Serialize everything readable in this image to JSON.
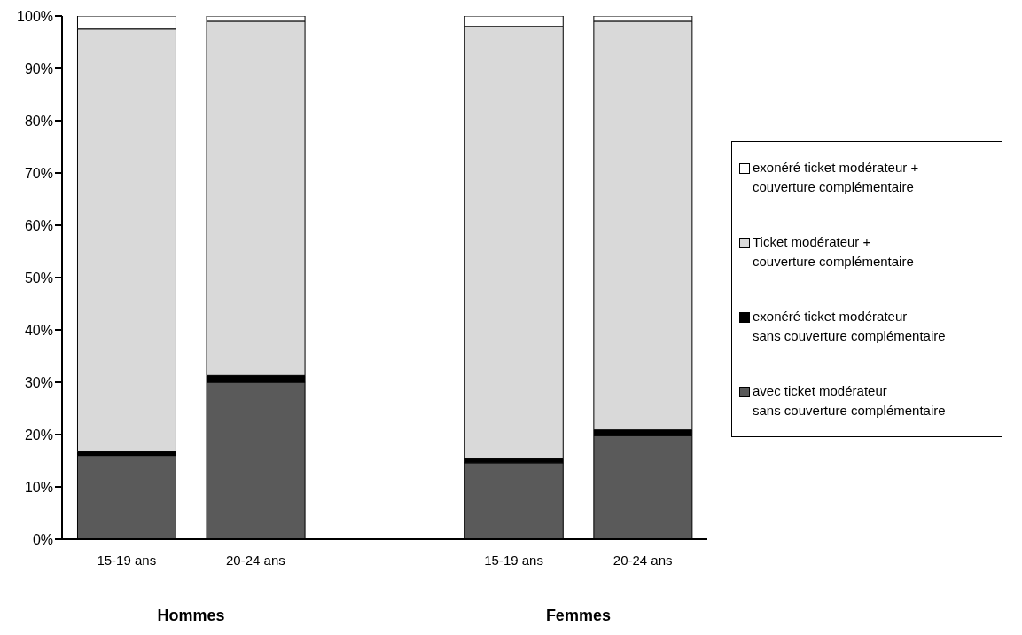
{
  "chart_data": {
    "type": "bar",
    "stacked": true,
    "categories": [
      "15-19 ans",
      "20-24 ans",
      null,
      "15-19 ans",
      "20-24 ans"
    ],
    "series": [
      {
        "name": "avec ticket modérateur\nsans couverture complémentaire",
        "color": "#5a5a5a",
        "values": [
          16,
          30,
          null,
          14.6,
          19.8
        ]
      },
      {
        "name": "exonéré ticket modérateur\nsans couverture complémentaire",
        "color": "#000000",
        "values": [
          0.7,
          1.3,
          null,
          0.9,
          1.1
        ]
      },
      {
        "name": "Ticket modérateur +\ncouverture complémentaire",
        "color": "#d9d9d9",
        "values": [
          80.8,
          67.7,
          null,
          82.5,
          78.1
        ]
      },
      {
        "name": "exonéré ticket modérateur +\ncouverture complémentaire",
        "color": "#ffffff",
        "values": [
          2.5,
          1.0,
          null,
          2.0,
          1.0
        ]
      }
    ],
    "ylim": [
      0,
      100
    ],
    "yticks": [
      {
        "value": 0,
        "label": "0%"
      },
      {
        "value": 10,
        "label": "10%"
      },
      {
        "value": 20,
        "label": "20%"
      },
      {
        "value": 30,
        "label": "30%"
      },
      {
        "value": 40,
        "label": "40%"
      },
      {
        "value": 50,
        "label": "50%"
      },
      {
        "value": 60,
        "label": "60%"
      },
      {
        "value": 70,
        "label": "70%"
      },
      {
        "value": 80,
        "label": "80%"
      },
      {
        "value": 90,
        "label": "90%"
      },
      {
        "value": 100,
        "label": "100%"
      }
    ],
    "grid": false,
    "legend": "right",
    "annotations": [
      "Hommes",
      "Femmes"
    ]
  }
}
